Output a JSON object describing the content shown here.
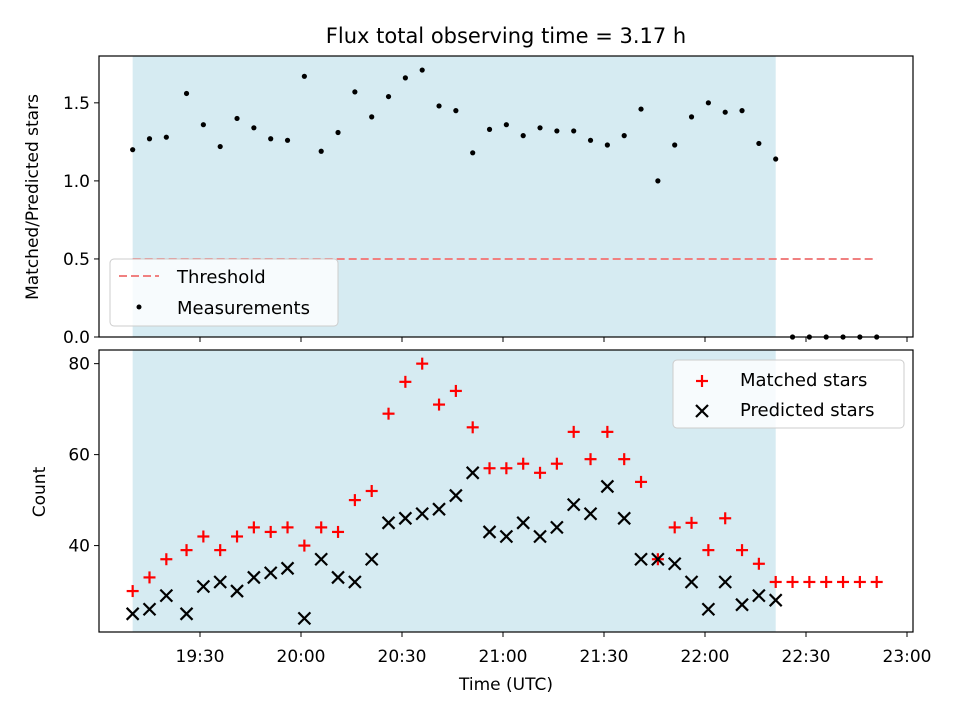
{
  "chart_data": [
    {
      "type": "scatter",
      "title": "Flux total observing time = 3.17 h",
      "ylabel": "Matched/Predicted stars",
      "ylim": [
        0,
        1.8
      ],
      "yticks": [
        "0.0",
        "0.5",
        "1.0",
        "1.5"
      ],
      "shaded_interval": [
        "19:10",
        "22:21"
      ],
      "shade_color": "#add8e6",
      "threshold": {
        "name": "Threshold",
        "value": 0.5,
        "x_range": [
          "19:10",
          "22:51"
        ],
        "color": "#f08080"
      },
      "series": [
        {
          "name": "Measurements",
          "color": "#000000",
          "x": [
            "19:10",
            "19:15",
            "19:20",
            "19:26",
            "19:31",
            "19:36",
            "19:41",
            "19:46",
            "19:51",
            "19:56",
            "20:01",
            "20:06",
            "20:11",
            "20:16",
            "20:21",
            "20:26",
            "20:31",
            "20:36",
            "20:41",
            "20:46",
            "20:51",
            "20:56",
            "21:01",
            "21:06",
            "21:11",
            "21:16",
            "21:21",
            "21:26",
            "21:31",
            "21:36",
            "21:41",
            "21:46",
            "21:51",
            "21:56",
            "22:01",
            "22:06",
            "22:11",
            "22:16",
            "22:21",
            "22:26",
            "22:31",
            "22:36",
            "22:41",
            "22:46",
            "22:51"
          ],
          "y": [
            1.2,
            1.27,
            1.28,
            1.56,
            1.36,
            1.22,
            1.4,
            1.34,
            1.27,
            1.26,
            1.67,
            1.19,
            1.31,
            1.57,
            1.41,
            1.54,
            1.66,
            1.71,
            1.48,
            1.45,
            1.18,
            1.33,
            1.36,
            1.29,
            1.34,
            1.32,
            1.32,
            1.26,
            1.23,
            1.29,
            1.46,
            1.0,
            1.23,
            1.41,
            1.5,
            1.44,
            1.45,
            1.24,
            1.14,
            0,
            0,
            0,
            0,
            0,
            0
          ]
        }
      ]
    },
    {
      "type": "scatter",
      "xlabel": "Time (UTC)",
      "ylabel": "Count",
      "ylim": [
        21,
        83
      ],
      "yticks": [
        "40",
        "60",
        "80"
      ],
      "xticks": [
        "19:30",
        "20:00",
        "20:30",
        "21:00",
        "21:30",
        "22:00",
        "22:30",
        "23:00"
      ],
      "shaded_interval": [
        "19:10",
        "22:21"
      ],
      "shade_color": "#add8e6",
      "legend": "top-right",
      "series": [
        {
          "name": "Matched stars",
          "marker": "+",
          "color": "#ff0000",
          "x": [
            "19:10",
            "19:15",
            "19:20",
            "19:26",
            "19:31",
            "19:36",
            "19:41",
            "19:46",
            "19:51",
            "19:56",
            "20:01",
            "20:06",
            "20:11",
            "20:16",
            "20:21",
            "20:26",
            "20:31",
            "20:36",
            "20:41",
            "20:46",
            "20:51",
            "20:56",
            "21:01",
            "21:06",
            "21:11",
            "21:16",
            "21:21",
            "21:26",
            "21:31",
            "21:36",
            "21:41",
            "21:46",
            "21:51",
            "21:56",
            "22:01",
            "22:06",
            "22:11",
            "22:16",
            "22:21",
            "22:26",
            "22:31",
            "22:36",
            "22:41",
            "22:46",
            "22:51"
          ],
          "y": [
            30,
            33,
            37,
            39,
            42,
            39,
            42,
            44,
            43,
            44,
            40,
            44,
            43,
            50,
            52,
            69,
            76,
            80,
            71,
            74,
            66,
            57,
            57,
            58,
            56,
            58,
            65,
            59,
            65,
            59,
            54,
            37,
            44,
            45,
            39,
            46,
            39,
            36,
            32,
            32,
            32,
            32,
            32,
            32,
            32
          ]
        },
        {
          "name": "Predicted stars",
          "marker": "x",
          "color": "#000000",
          "x": [
            "19:10",
            "19:15",
            "19:20",
            "19:26",
            "19:31",
            "19:36",
            "19:41",
            "19:46",
            "19:51",
            "19:56",
            "20:01",
            "20:06",
            "20:11",
            "20:16",
            "20:21",
            "20:26",
            "20:31",
            "20:36",
            "20:41",
            "20:46",
            "20:51",
            "20:56",
            "21:01",
            "21:06",
            "21:11",
            "21:16",
            "21:21",
            "21:26",
            "21:31",
            "21:36",
            "21:41",
            "21:46",
            "21:51",
            "21:56",
            "22:01",
            "22:06",
            "22:11",
            "22:16",
            "22:21"
          ],
          "y": [
            25,
            26,
            29,
            25,
            31,
            32,
            30,
            33,
            34,
            35,
            24,
            37,
            33,
            32,
            37,
            45,
            46,
            47,
            48,
            51,
            56,
            43,
            42,
            45,
            42,
            44,
            49,
            47,
            53,
            46,
            37,
            37,
            36,
            32,
            26,
            32,
            27,
            29,
            28
          ]
        }
      ]
    }
  ]
}
